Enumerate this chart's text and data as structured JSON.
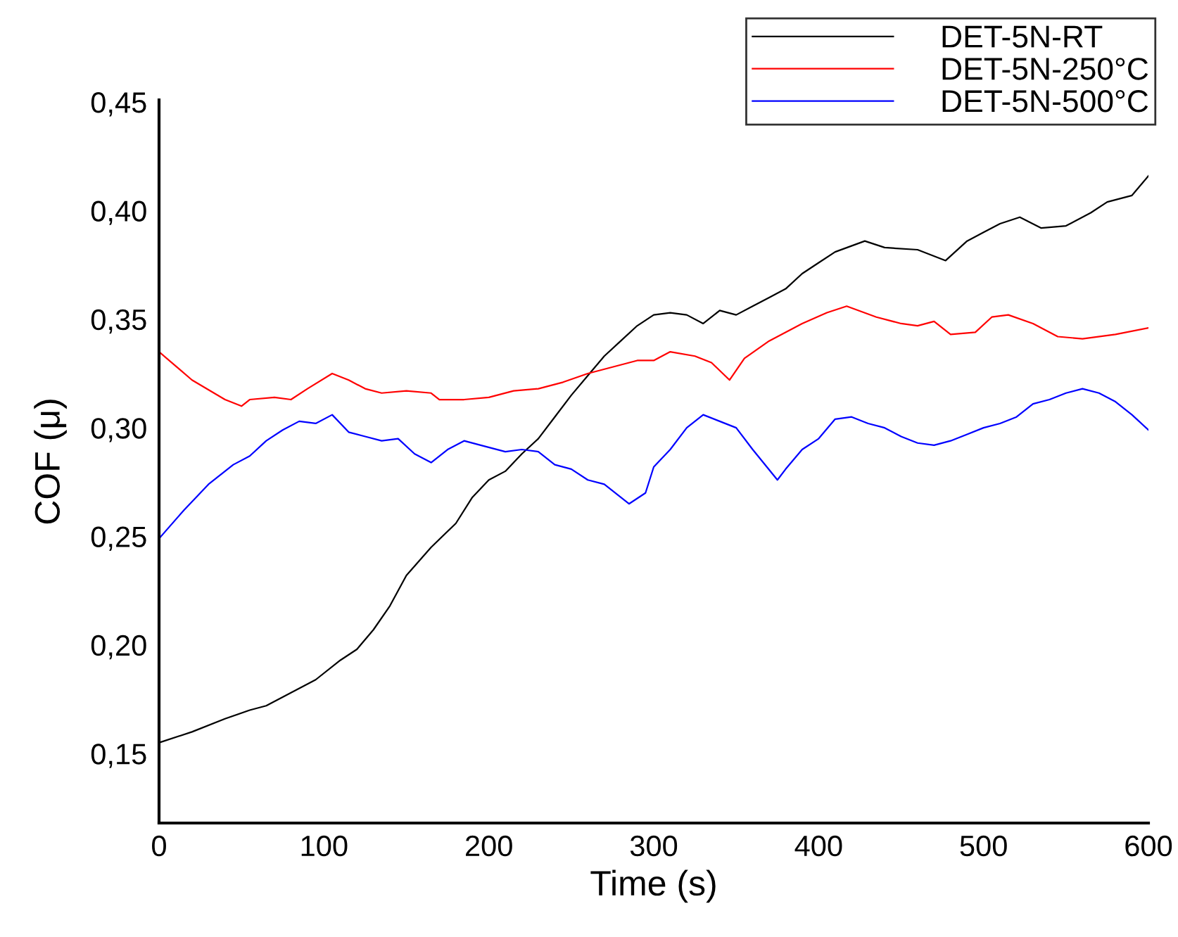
{
  "chart_data": {
    "type": "line",
    "xlabel": "Time (s)",
    "ylabel": "COF (μ)",
    "xlim": [
      0,
      600
    ],
    "ylim": [
      0.118,
      0.451
    ],
    "xticks": [
      0,
      100,
      200,
      300,
      400,
      500,
      600
    ],
    "yticks": [
      {
        "value": 0.15,
        "label": "0,15"
      },
      {
        "value": 0.2,
        "label": "0,20"
      },
      {
        "value": 0.25,
        "label": "0,25"
      },
      {
        "value": 0.3,
        "label": "0,30"
      },
      {
        "value": 0.35,
        "label": "0,35"
      },
      {
        "value": 0.4,
        "label": "0,40"
      },
      {
        "value": 0.45,
        "label": "0,45"
      }
    ],
    "grid": false,
    "legend": "top right",
    "marker": "none",
    "line_style": "solid",
    "series": [
      {
        "name": "DET-5N-RT",
        "color": "#000000",
        "x": [
          0,
          20,
          40,
          55,
          65,
          80,
          95,
          110,
          120,
          130,
          140,
          150,
          165,
          180,
          190,
          200,
          210,
          220,
          230,
          240,
          250,
          260,
          270,
          280,
          290,
          300,
          310,
          320,
          330,
          340,
          350,
          360,
          370,
          380,
          390,
          400,
          410,
          428,
          440,
          460,
          477,
          490,
          500,
          510,
          522,
          535,
          550,
          565,
          575,
          590,
          600
        ],
        "values": [
          0.155,
          0.16,
          0.166,
          0.17,
          0.172,
          0.178,
          0.184,
          0.193,
          0.198,
          0.207,
          0.218,
          0.232,
          0.245,
          0.256,
          0.268,
          0.276,
          0.28,
          0.288,
          0.295,
          0.305,
          0.315,
          0.324,
          0.333,
          0.34,
          0.347,
          0.352,
          0.353,
          0.352,
          0.348,
          0.354,
          0.352,
          0.356,
          0.36,
          0.364,
          0.371,
          0.376,
          0.381,
          0.386,
          0.383,
          0.382,
          0.377,
          0.386,
          0.39,
          0.394,
          0.397,
          0.392,
          0.393,
          0.399,
          0.404,
          0.407,
          0.416
        ]
      },
      {
        "name": "DET-5N-250°C",
        "color": "#ff0000",
        "x": [
          0,
          20,
          40,
          50,
          55,
          70,
          80,
          90,
          105,
          115,
          125,
          135,
          150,
          165,
          170,
          185,
          200,
          215,
          230,
          245,
          260,
          275,
          290,
          300,
          310,
          325,
          335,
          346,
          355,
          370,
          390,
          405,
          417,
          435,
          450,
          460,
          470,
          480,
          495,
          505,
          515,
          530,
          545,
          560,
          580,
          600
        ],
        "values": [
          0.335,
          0.322,
          0.313,
          0.31,
          0.313,
          0.314,
          0.313,
          0.318,
          0.325,
          0.322,
          0.318,
          0.316,
          0.317,
          0.316,
          0.313,
          0.313,
          0.314,
          0.317,
          0.318,
          0.321,
          0.325,
          0.328,
          0.331,
          0.331,
          0.335,
          0.333,
          0.33,
          0.322,
          0.332,
          0.34,
          0.348,
          0.353,
          0.356,
          0.351,
          0.348,
          0.347,
          0.349,
          0.343,
          0.344,
          0.351,
          0.352,
          0.348,
          0.342,
          0.341,
          0.343,
          0.346
        ]
      },
      {
        "name": "DET-5N-500°C",
        "color": "#0000ff",
        "x": [
          0,
          15,
          30,
          45,
          55,
          65,
          75,
          85,
          95,
          105,
          115,
          125,
          135,
          145,
          155,
          165,
          175,
          185,
          195,
          210,
          220,
          230,
          240,
          250,
          260,
          270,
          285,
          295,
          300,
          310,
          320,
          330,
          340,
          350,
          360,
          375,
          380,
          390,
          400,
          410,
          420,
          430,
          440,
          450,
          460,
          470,
          480,
          490,
          500,
          510,
          520,
          530,
          540,
          550,
          560,
          570,
          580,
          590,
          600
        ],
        "values": [
          0.249,
          0.262,
          0.274,
          0.283,
          0.287,
          0.294,
          0.299,
          0.303,
          0.302,
          0.306,
          0.298,
          0.296,
          0.294,
          0.295,
          0.288,
          0.284,
          0.29,
          0.294,
          0.292,
          0.289,
          0.29,
          0.289,
          0.283,
          0.281,
          0.276,
          0.274,
          0.265,
          0.27,
          0.282,
          0.29,
          0.3,
          0.306,
          0.303,
          0.3,
          0.29,
          0.276,
          0.281,
          0.29,
          0.295,
          0.304,
          0.305,
          0.302,
          0.3,
          0.296,
          0.293,
          0.292,
          0.294,
          0.297,
          0.3,
          0.302,
          0.305,
          0.311,
          0.313,
          0.316,
          0.318,
          0.316,
          0.312,
          0.306,
          0.299
        ]
      }
    ]
  }
}
